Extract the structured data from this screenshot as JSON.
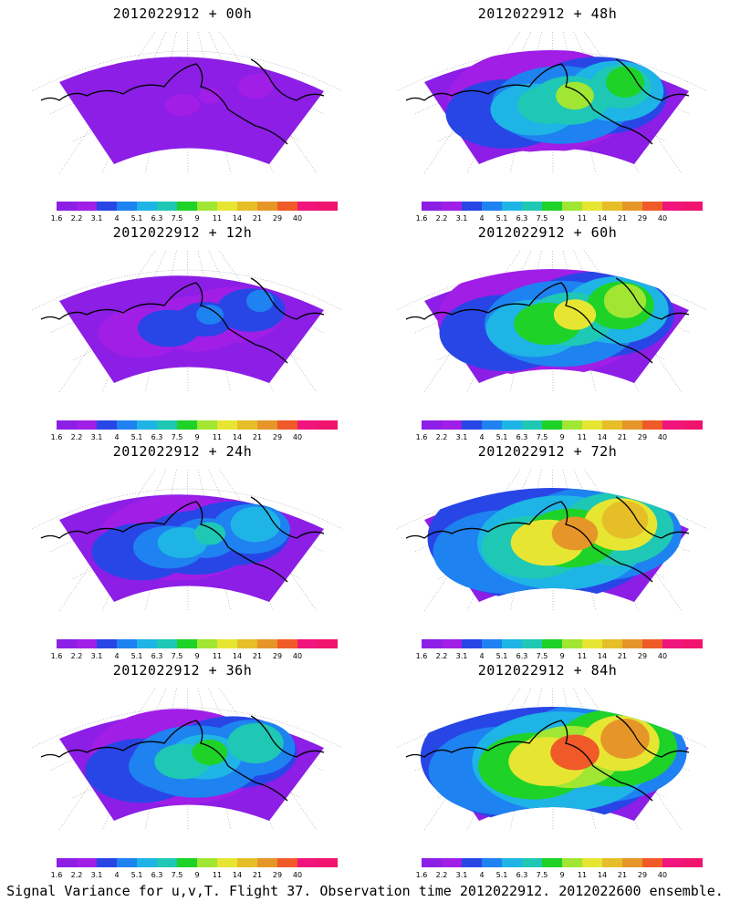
{
  "colorbar": {
    "labels": [
      "1.6",
      "2.2",
      "3.1",
      "4",
      "5.1",
      "6.3",
      "7.5",
      "9",
      "11",
      "14",
      "21",
      "29",
      "40"
    ],
    "colors": [
      "#8c1ee6",
      "#a01ee6",
      "#2846e6",
      "#1e82f0",
      "#1eb4e6",
      "#1ec8b4",
      "#1ed228",
      "#a0e632",
      "#e6e632",
      "#e6be28",
      "#e69628",
      "#f05a28",
      "#f0147d",
      "#f0146e"
    ]
  },
  "panels": [
    {
      "title": "2012022912 + 00h",
      "intensity": 0.05
    },
    {
      "title": "2012022912 + 48h",
      "intensity": 0.45
    },
    {
      "title": "2012022912 + 12h",
      "intensity": 0.18
    },
    {
      "title": "2012022912 + 60h",
      "intensity": 0.55
    },
    {
      "title": "2012022912 + 24h",
      "intensity": 0.28
    },
    {
      "title": "2012022912 + 72h",
      "intensity": 0.65
    },
    {
      "title": "2012022912 + 36h",
      "intensity": 0.38
    },
    {
      "title": "2012022912 + 84h",
      "intensity": 0.72
    }
  ],
  "footer": "Signal Variance for u,v,T. Flight 37. Observation time 2012022912. 2012022600 ensemble."
}
